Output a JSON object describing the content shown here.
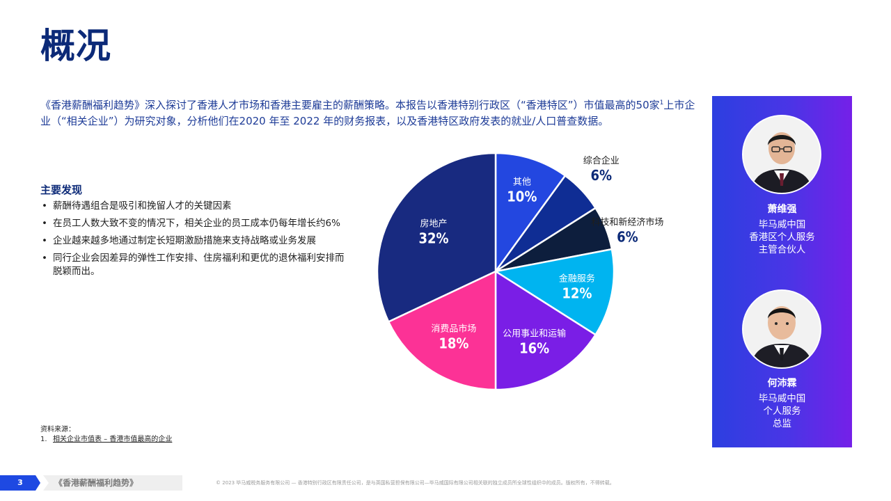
{
  "page": {
    "title": "概况",
    "intro_part1": "《香港薪酬福利趋势》深入探讨了香港人才市场和香港主要雇主的薪酬策略。本报告以香港特别行政区（“香港特区”）市值最高的50家",
    "intro_sup": "1",
    "intro_part2": "上市企业（“相关企业”）为研究对象，分析他们在2020 年至 2022 年的财务报表，以及香港特区政府发表的就业/人口普查数据。"
  },
  "findings": {
    "title": "主要发现",
    "items": [
      "薪酬待遇组合是吸引和挽留人才的关键因素",
      "在员工人数大致不变的情况下，相关企业的员工成本仍每年增长约6%",
      "企业越来越多地通过制定长短期激励措施来支持战略或业务发展",
      "同行企业会因差异的弹性工作安排、住房福利和更优的退休福利安排而脱颖而出。"
    ]
  },
  "chart_data": {
    "type": "pie",
    "slices": [
      {
        "label": "其他",
        "value": 10,
        "display": "10%",
        "color": "#2347e0"
      },
      {
        "label": "综合企业",
        "value": 6,
        "display": "6%",
        "color": "#0f2d94"
      },
      {
        "label": "科技和新经济市场",
        "value": 6,
        "display": "6%",
        "color": "#0d1e3d"
      },
      {
        "label": "金融服务",
        "value": 12,
        "display": "12%",
        "color": "#00b4f0"
      },
      {
        "label": "公用事业和运输",
        "value": 16,
        "display": "16%",
        "color": "#7a1ee6"
      },
      {
        "label": "消费品市场",
        "value": 18,
        "display": "18%",
        "color": "#fc3296"
      },
      {
        "label": "房地产",
        "value": 32,
        "display": "32%",
        "color": "#182a80"
      }
    ]
  },
  "source": {
    "label": "资料来源：",
    "num": "1.",
    "ref": "相关企业市值表 – 香港市值最高的企业"
  },
  "people": [
    {
      "name": "萧维强",
      "role_lines": [
        "毕马威中国",
        "香港区个人服务",
        "主管合伙人"
      ]
    },
    {
      "name": "何沛霖",
      "role_lines": [
        "毕马威中国",
        "个人服务",
        "总监"
      ]
    }
  ],
  "footer": {
    "page_number": "3",
    "report_title": "《香港薪酬福利趋势》",
    "copyright": "© 2023 毕马威税务服务有限公司 — 香港特别行政区有限责任公司，是与英国私营担保有限公司—毕马威国际有限公司相关联的独立成员所全球性组织中的成员。版权所有，不得转载。"
  },
  "colors": {
    "brand_dark": "#0c2a78",
    "brand_blue": "#1e49e2",
    "panel_start": "#2c3fe0",
    "panel_end": "#7520e8"
  }
}
